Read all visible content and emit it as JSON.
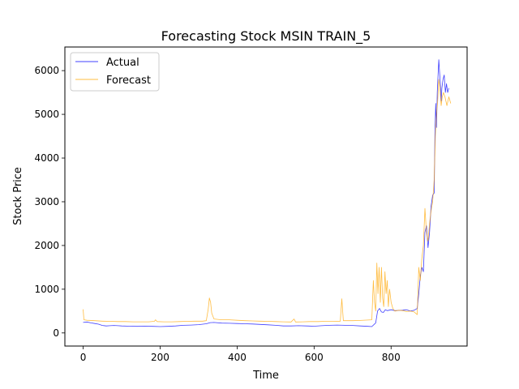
{
  "chart_data": {
    "type": "line",
    "title": "Forecasting Stock MSIN TRAIN_5",
    "xlabel": "Time",
    "ylabel": "Stock Price",
    "xlim": [
      -47.5,
      997.5
    ],
    "ylim": [
      -300,
      6540
    ],
    "xticks": [
      0,
      200,
      400,
      600,
      800
    ],
    "yticks": [
      0,
      1000,
      2000,
      3000,
      4000,
      5000,
      6000
    ],
    "grid": false,
    "legend_position": "top-left",
    "series": [
      {
        "name": "Actual",
        "color": "#0000ff",
        "points": [
          [
            0,
            240
          ],
          [
            10,
            250
          ],
          [
            20,
            230
          ],
          [
            30,
            215
          ],
          [
            40,
            200
          ],
          [
            50,
            170
          ],
          [
            60,
            160
          ],
          [
            70,
            165
          ],
          [
            80,
            170
          ],
          [
            90,
            165
          ],
          [
            100,
            160
          ],
          [
            120,
            155
          ],
          [
            140,
            150
          ],
          [
            160,
            155
          ],
          [
            180,
            150
          ],
          [
            200,
            145
          ],
          [
            220,
            150
          ],
          [
            240,
            160
          ],
          [
            260,
            175
          ],
          [
            280,
            180
          ],
          [
            300,
            190
          ],
          [
            320,
            210
          ],
          [
            330,
            235
          ],
          [
            340,
            240
          ],
          [
            360,
            225
          ],
          [
            380,
            220
          ],
          [
            400,
            215
          ],
          [
            420,
            210
          ],
          [
            440,
            205
          ],
          [
            460,
            195
          ],
          [
            480,
            185
          ],
          [
            500,
            175
          ],
          [
            520,
            160
          ],
          [
            540,
            160
          ],
          [
            560,
            165
          ],
          [
            580,
            160
          ],
          [
            600,
            155
          ],
          [
            620,
            165
          ],
          [
            640,
            175
          ],
          [
            660,
            180
          ],
          [
            680,
            175
          ],
          [
            700,
            170
          ],
          [
            720,
            160
          ],
          [
            740,
            150
          ],
          [
            750,
            145
          ],
          [
            760,
            230
          ],
          [
            765,
            500
          ],
          [
            770,
            560
          ],
          [
            775,
            480
          ],
          [
            780,
            470
          ],
          [
            785,
            530
          ],
          [
            790,
            510
          ],
          [
            800,
            530
          ],
          [
            810,
            510
          ],
          [
            820,
            515
          ],
          [
            830,
            520
          ],
          [
            840,
            530
          ],
          [
            850,
            500
          ],
          [
            860,
            520
          ],
          [
            868,
            560
          ],
          [
            872,
            900
          ],
          [
            876,
            1300
          ],
          [
            880,
            1500
          ],
          [
            884,
            1400
          ],
          [
            888,
            2300
          ],
          [
            892,
            2450
          ],
          [
            896,
            1950
          ],
          [
            900,
            2300
          ],
          [
            904,
            2900
          ],
          [
            908,
            3150
          ],
          [
            912,
            3200
          ],
          [
            914,
            4600
          ],
          [
            916,
            5250
          ],
          [
            918,
            4700
          ],
          [
            920,
            5500
          ],
          [
            922,
            5900
          ],
          [
            924,
            6250
          ],
          [
            926,
            5950
          ],
          [
            928,
            5700
          ],
          [
            930,
            5300
          ],
          [
            932,
            5600
          ],
          [
            935,
            5800
          ],
          [
            938,
            5900
          ],
          [
            941,
            5500
          ],
          [
            944,
            5700
          ],
          [
            947,
            5500
          ],
          [
            950,
            5600
          ]
        ]
      },
      {
        "name": "Forecast",
        "color": "#ffa500",
        "points": [
          [
            0,
            540
          ],
          [
            2,
            300
          ],
          [
            10,
            290
          ],
          [
            30,
            280
          ],
          [
            50,
            270
          ],
          [
            70,
            265
          ],
          [
            90,
            260
          ],
          [
            110,
            260
          ],
          [
            130,
            255
          ],
          [
            150,
            255
          ],
          [
            170,
            255
          ],
          [
            185,
            265
          ],
          [
            188,
            300
          ],
          [
            192,
            260
          ],
          [
            210,
            255
          ],
          [
            230,
            255
          ],
          [
            250,
            260
          ],
          [
            270,
            265
          ],
          [
            290,
            270
          ],
          [
            310,
            270
          ],
          [
            320,
            280
          ],
          [
            325,
            550
          ],
          [
            328,
            800
          ],
          [
            331,
            700
          ],
          [
            334,
            450
          ],
          [
            340,
            320
          ],
          [
            360,
            300
          ],
          [
            380,
            300
          ],
          [
            400,
            290
          ],
          [
            420,
            280
          ],
          [
            440,
            275
          ],
          [
            460,
            270
          ],
          [
            480,
            265
          ],
          [
            500,
            260
          ],
          [
            520,
            255
          ],
          [
            540,
            250
          ],
          [
            548,
            320
          ],
          [
            552,
            250
          ],
          [
            570,
            255
          ],
          [
            590,
            260
          ],
          [
            610,
            260
          ],
          [
            630,
            265
          ],
          [
            650,
            265
          ],
          [
            668,
            270
          ],
          [
            672,
            780
          ],
          [
            676,
            280
          ],
          [
            700,
            280
          ],
          [
            720,
            285
          ],
          [
            740,
            295
          ],
          [
            750,
            300
          ],
          [
            754,
            1200
          ],
          [
            757,
            700
          ],
          [
            760,
            500
          ],
          [
            763,
            1600
          ],
          [
            766,
            900
          ],
          [
            769,
            1500
          ],
          [
            772,
            700
          ],
          [
            775,
            1500
          ],
          [
            778,
            800
          ],
          [
            781,
            600
          ],
          [
            784,
            1400
          ],
          [
            787,
            900
          ],
          [
            790,
            1200
          ],
          [
            793,
            600
          ],
          [
            796,
            1000
          ],
          [
            800,
            700
          ],
          [
            805,
            550
          ],
          [
            810,
            500
          ],
          [
            820,
            520
          ],
          [
            830,
            510
          ],
          [
            840,
            490
          ],
          [
            850,
            500
          ],
          [
            860,
            480
          ],
          [
            868,
            420
          ],
          [
            872,
            1500
          ],
          [
            876,
            1200
          ],
          [
            880,
            1700
          ],
          [
            884,
            2000
          ],
          [
            888,
            2850
          ],
          [
            892,
            2300
          ],
          [
            896,
            2100
          ],
          [
            900,
            2500
          ],
          [
            904,
            2800
          ],
          [
            908,
            3000
          ],
          [
            912,
            3500
          ],
          [
            915,
            4500
          ],
          [
            918,
            5000
          ],
          [
            921,
            5300
          ],
          [
            924,
            5800
          ],
          [
            927,
            5600
          ],
          [
            930,
            5200
          ],
          [
            933,
            5400
          ],
          [
            936,
            5500
          ],
          [
            940,
            5400
          ],
          [
            945,
            5200
          ],
          [
            950,
            5400
          ],
          [
            955,
            5250
          ]
        ]
      }
    ]
  }
}
